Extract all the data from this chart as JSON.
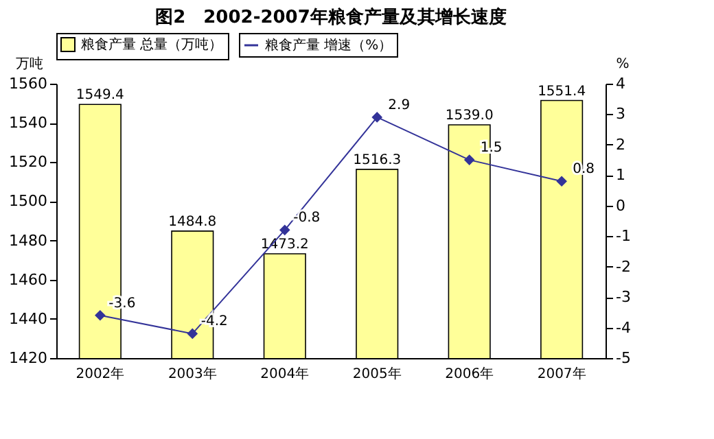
{
  "chart_data": {
    "type": "bar",
    "title": "图2　2002-2007年粮食产量及其增长速度",
    "categories": [
      "2002年",
      "2003年",
      "2004年",
      "2005年",
      "2006年",
      "2007年"
    ],
    "series": [
      {
        "name": "粮食产量 总量（万吨）",
        "color": "#ffff99",
        "values": [
          1549.4,
          1484.8,
          1473.2,
          1516.3,
          1539.0,
          1551.4
        ],
        "value_labels": [
          "1549.4",
          "1484.8",
          "1473.2",
          "1516.3",
          "1539.0",
          "1551.4"
        ]
      },
      {
        "name": "粮食产量 增速（%）",
        "type": "line",
        "axis": "y2",
        "color": "#333399",
        "values": [
          -3.6,
          -4.2,
          -0.8,
          2.9,
          1.5,
          0.8
        ],
        "value_labels": [
          "-3.6",
          "-4.2",
          "-0.8",
          "2.9",
          "1.5",
          "0.8"
        ]
      }
    ],
    "ylabel": "万吨",
    "y2label": "%",
    "ylim": [
      1420,
      1560
    ],
    "yticks": [
      1420,
      1440,
      1460,
      1480,
      1500,
      1520,
      1540,
      1560
    ],
    "y2lim": [
      -5,
      4
    ],
    "y2ticks": [
      -5,
      -4,
      -3,
      -2,
      -1,
      0,
      1,
      2,
      3,
      4
    ],
    "legend": "top",
    "marker": "diamond",
    "line_style": "solid"
  }
}
